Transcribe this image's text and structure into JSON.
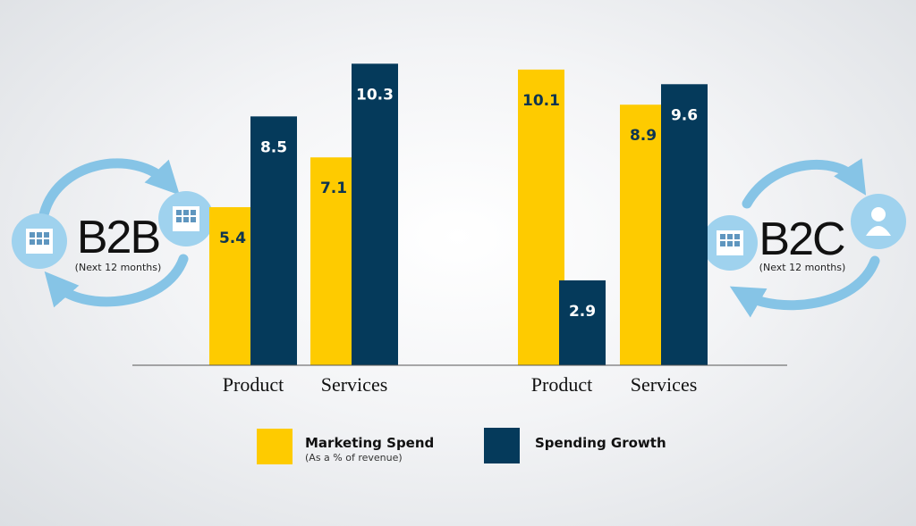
{
  "chart_data": {
    "type": "bar",
    "colors": {
      "marketing": "#fecb00",
      "growth": "#053a5b",
      "arrow": "#86c4e6",
      "circle": "#9fd2ee",
      "icon_cell": "#5f96bf"
    },
    "groups": [
      {
        "name": "B2B",
        "subtitle": "(Next 12 months)",
        "icon_left": "building-icon",
        "icon_right": "building-icon",
        "categories": [
          "Product",
          "Services"
        ],
        "series": [
          {
            "name": "Marketing Spend",
            "values": [
              5.4,
              7.1
            ],
            "labels": [
              "5.4",
              "7.1"
            ]
          },
          {
            "name": "Spending Growth",
            "values": [
              8.5,
              10.3
            ],
            "labels": [
              "8.5",
              "10.3"
            ]
          }
        ]
      },
      {
        "name": "B2C",
        "subtitle": "(Next 12 months)",
        "icon_left": "building-icon",
        "icon_right": "person-icon",
        "categories": [
          "Product",
          "Services"
        ],
        "series": [
          {
            "name": "Marketing Spend",
            "values": [
              10.1,
              8.9
            ],
            "labels": [
              "10.1",
              "8.9"
            ]
          },
          {
            "name": "Spending Growth",
            "values": [
              2.9,
              9.6
            ],
            "labels": [
              "2.9",
              "9.6"
            ]
          }
        ]
      }
    ],
    "ylim": [
      0,
      11.5
    ],
    "legend": [
      {
        "key": "marketing",
        "label": "Marketing Spend",
        "sublabel": "(As a % of revenue)"
      },
      {
        "key": "growth",
        "label": "Spending Growth"
      }
    ],
    "xlabel": "",
    "ylabel": "",
    "grid": false,
    "legend_position": "bottom"
  }
}
